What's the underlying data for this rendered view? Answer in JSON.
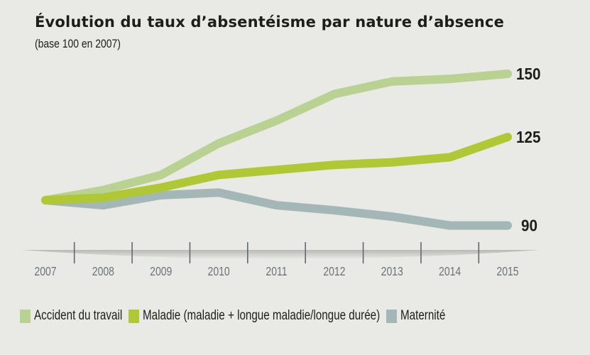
{
  "chart_data": {
    "type": "line",
    "title": "Évolution du taux d’absentéisme par nature d’absence",
    "subtitle": "(base 100 en 2007)",
    "xlabel": "",
    "ylabel": "",
    "categories": [
      "2007",
      "2008",
      "2009",
      "2010",
      "2011",
      "2012",
      "2013",
      "2014",
      "2015"
    ],
    "ylim": [
      85,
      155
    ],
    "grid": false,
    "legend_position": "bottom",
    "series": [
      {
        "name": "Accident du travail",
        "color": "#b9d291",
        "values": [
          100,
          104,
          110,
          122.5,
          131.5,
          142,
          147,
          148,
          150
        ],
        "end_label": "150"
      },
      {
        "name": "Maladie (maladie + longue maladie/longue durée)",
        "color": "#afc834",
        "values": [
          100,
          101,
          105,
          110,
          112,
          114,
          115,
          117,
          125
        ],
        "end_label": "125"
      },
      {
        "name": "Maternité",
        "color": "#a3b7b7",
        "values": [
          100,
          98,
          102,
          103,
          98,
          96,
          93.5,
          90,
          90
        ],
        "end_label": "90"
      }
    ],
    "axis_color": "#5f6a70",
    "tick_label_color": "#6b7479"
  }
}
